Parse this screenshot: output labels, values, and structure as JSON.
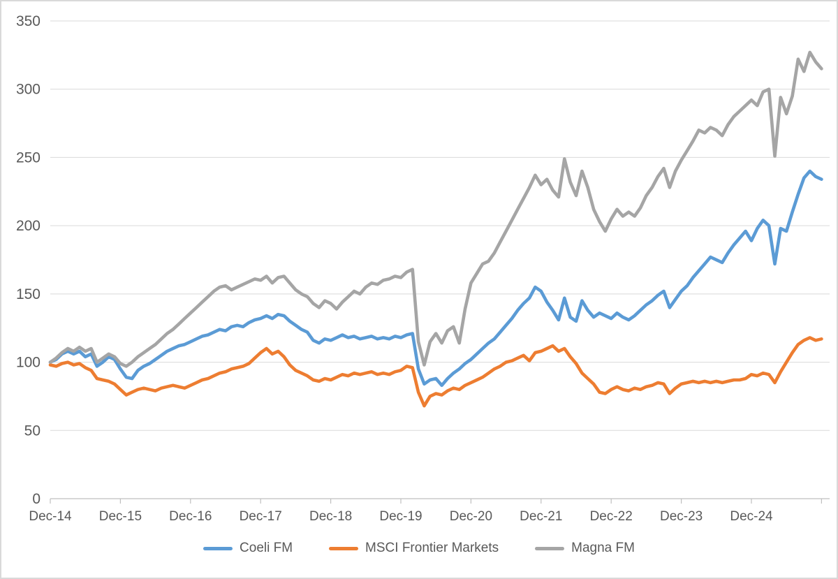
{
  "chart_data": {
    "type": "line",
    "title": "",
    "grid": true,
    "legend_position": "bottom",
    "points_per_year": 12,
    "x_axis": {
      "tick_labels": [
        "Dec-14",
        "Dec-15",
        "Dec-16",
        "Dec-17",
        "Dec-18",
        "Dec-19",
        "Dec-20",
        "Dec-21",
        "Dec-22",
        "Dec-23",
        "Dec-24"
      ],
      "extra_end_ticks": 1
    },
    "y_axis": {
      "ticks": [
        0,
        50,
        100,
        150,
        200,
        250,
        300,
        350
      ],
      "range": [
        0,
        350
      ]
    },
    "series": [
      {
        "name": "Coeli FM",
        "color": "#5B9BD5",
        "values": [
          100,
          102,
          106,
          108,
          106,
          108,
          104,
          106,
          97,
          100,
          104,
          102,
          95,
          89,
          88,
          94,
          97,
          99,
          102,
          105,
          108,
          110,
          112,
          113,
          115,
          117,
          119,
          120,
          122,
          124,
          123,
          126,
          127,
          126,
          129,
          131,
          132,
          134,
          132,
          135,
          134,
          130,
          127,
          124,
          122,
          116,
          114,
          117,
          116,
          118,
          120,
          118,
          119,
          117,
          118,
          119,
          117,
          118,
          117,
          119,
          118,
          120,
          121,
          95,
          84,
          87,
          88,
          83,
          88,
          92,
          95,
          99,
          102,
          106,
          110,
          114,
          117,
          122,
          127,
          132,
          138,
          143,
          147,
          155,
          152,
          144,
          138,
          131,
          147,
          133,
          130,
          145,
          138,
          133,
          136,
          134,
          132,
          136,
          133,
          131,
          134,
          138,
          142,
          145,
          149,
          152,
          140,
          146,
          152,
          156,
          162,
          167,
          172,
          177,
          175,
          173,
          180,
          186,
          191,
          196,
          189,
          198,
          204,
          200,
          172,
          198,
          196,
          210,
          223,
          235,
          240,
          236,
          234
        ]
      },
      {
        "name": "MSCI Frontier Markets",
        "color": "#ED7D31",
        "values": [
          98,
          97,
          99,
          100,
          98,
          99,
          96,
          94,
          88,
          87,
          86,
          84,
          80,
          76,
          78,
          80,
          81,
          80,
          79,
          81,
          82,
          83,
          82,
          81,
          83,
          85,
          87,
          88,
          90,
          92,
          93,
          95,
          96,
          97,
          99,
          103,
          107,
          110,
          106,
          108,
          104,
          98,
          94,
          92,
          90,
          87,
          86,
          88,
          87,
          89,
          91,
          90,
          92,
          91,
          92,
          93,
          91,
          92,
          91,
          93,
          94,
          97,
          96,
          78,
          68,
          75,
          77,
          76,
          79,
          81,
          80,
          83,
          85,
          87,
          89,
          92,
          95,
          97,
          100,
          101,
          103,
          105,
          101,
          107,
          108,
          110,
          112,
          108,
          110,
          104,
          99,
          92,
          88,
          84,
          78,
          77,
          80,
          82,
          80,
          79,
          81,
          80,
          82,
          83,
          85,
          84,
          77,
          81,
          84,
          85,
          86,
          85,
          86,
          85,
          86,
          85,
          86,
          87,
          87,
          88,
          91,
          90,
          92,
          91,
          85,
          93,
          100,
          107,
          113,
          116,
          118,
          116,
          117
        ]
      },
      {
        "name": "Magna FM",
        "color": "#A5A5A5",
        "values": [
          100,
          103,
          107,
          110,
          108,
          111,
          108,
          110,
          100,
          103,
          106,
          104,
          99,
          97,
          100,
          104,
          107,
          110,
          113,
          117,
          121,
          124,
          128,
          132,
          136,
          140,
          144,
          148,
          152,
          155,
          156,
          153,
          155,
          157,
          159,
          161,
          160,
          163,
          158,
          162,
          163,
          158,
          153,
          150,
          148,
          143,
          140,
          145,
          143,
          139,
          144,
          148,
          152,
          150,
          155,
          158,
          157,
          160,
          161,
          163,
          162,
          166,
          168,
          115,
          98,
          115,
          121,
          114,
          123,
          126,
          114,
          139,
          158,
          165,
          172,
          174,
          180,
          188,
          196,
          204,
          212,
          220,
          228,
          237,
          230,
          234,
          226,
          221,
          249,
          232,
          222,
          240,
          228,
          212,
          203,
          196,
          205,
          212,
          207,
          210,
          207,
          213,
          222,
          228,
          236,
          242,
          228,
          240,
          248,
          255,
          262,
          270,
          268,
          272,
          270,
          266,
          274,
          280,
          284,
          288,
          292,
          288,
          298,
          300,
          251,
          294,
          282,
          295,
          322,
          313,
          327,
          320,
          315
        ]
      }
    ]
  },
  "style_colors": {
    "grid": "#d9d9d9",
    "axis": "#bfbfbf",
    "tick_text": "#595959",
    "background": "#ffffff",
    "frame_border": "#d9d9d9"
  }
}
